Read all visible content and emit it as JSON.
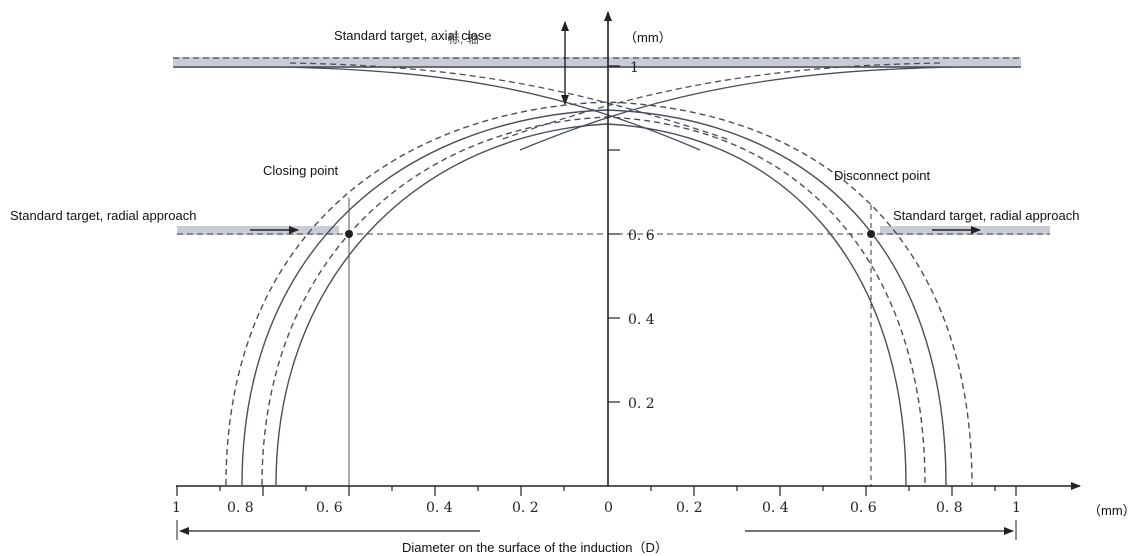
{
  "labels": {
    "axial_close": "Standard target, axial close",
    "axial_close_overlap": "标, 轴",
    "unit_top": "（mm）",
    "closing_point": "Closing point",
    "disconnect_point": "Disconnect point",
    "radial_left": "Standard target, radial approach",
    "radial_right": "Standard target, radial approach",
    "unit_right": "（mm）",
    "diameter": "Diameter on the surface of the induction（D）"
  },
  "y_ticks": [
    "1",
    "0. 6",
    "0. 4",
    "0. 2"
  ],
  "x_ticks_left": [
    "1",
    "0. 8",
    "0. 6",
    "0. 4",
    "0. 2",
    "0"
  ],
  "x_ticks_right": [
    "0. 2",
    "0. 4",
    "0. 6",
    "0. 8",
    "1"
  ],
  "colors": {
    "curve": "#4a4f5c",
    "band": "#c8ccd4",
    "axis": "#222222"
  }
}
